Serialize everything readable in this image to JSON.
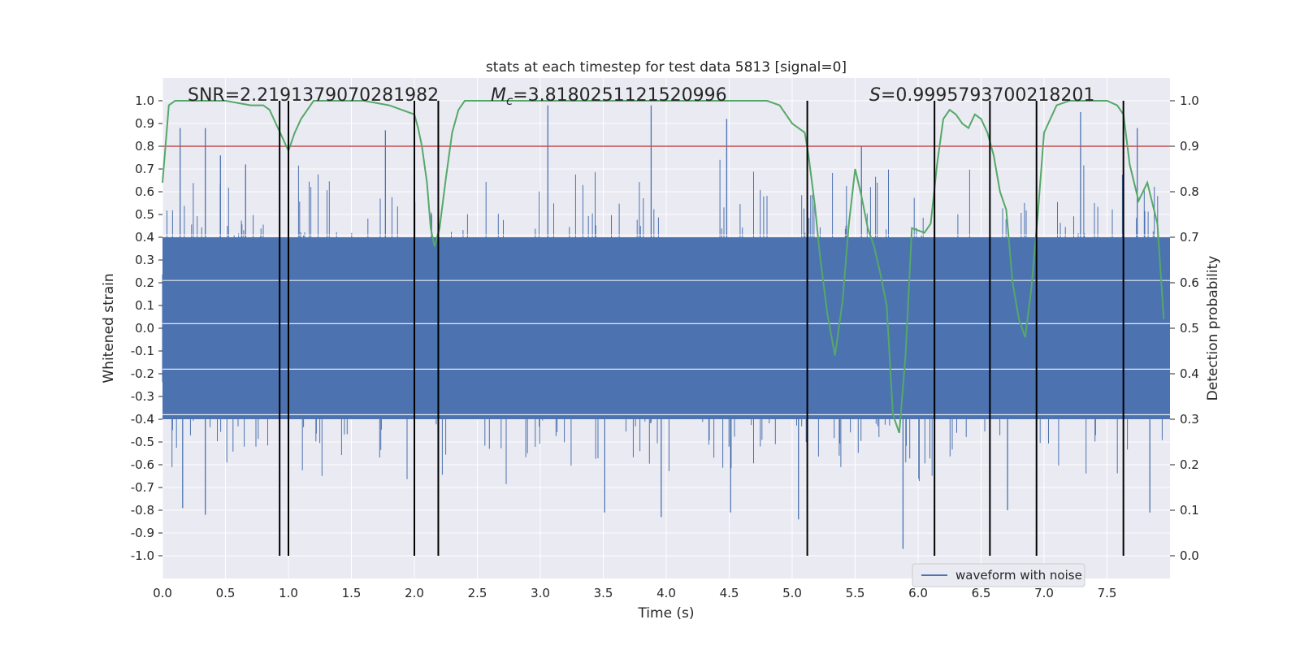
{
  "chart_data": {
    "type": "line",
    "title": "stats at each timestep for test data 5813 [signal=0]",
    "xlabel": "Time (s)",
    "ylabel": "Whitened strain",
    "y2label": "Detection probability",
    "xlim": [
      0,
      8
    ],
    "ylim": [
      -1.1,
      1.1
    ],
    "y2lim": [
      -0.05,
      1.05
    ],
    "x_ticks": [
      "0.0",
      "0.5",
      "1.0",
      "1.5",
      "2.0",
      "2.5",
      "3.0",
      "3.5",
      "4.0",
      "4.5",
      "5.0",
      "5.5",
      "6.0",
      "6.5",
      "7.0",
      "7.5"
    ],
    "y_ticks": [
      "1.0",
      "0.9",
      "0.8",
      "0.7",
      "0.6",
      "0.5",
      "0.4",
      "0.3",
      "0.2",
      "0.1",
      "0.0",
      "-0.1",
      "-0.2",
      "-0.3",
      "-0.4",
      "-0.5",
      "-0.6",
      "-0.7",
      "-0.8",
      "-0.9",
      "-1.0"
    ],
    "y2_ticks": [
      "1.0",
      "0.9",
      "0.8",
      "0.7",
      "0.6",
      "0.5",
      "0.4",
      "0.3",
      "0.2",
      "0.1",
      "0.0"
    ],
    "grid": true,
    "legend_placement": "lower-right",
    "annotations": {
      "snr": "SNR=2.2191379070281982",
      "mc_symbol": "M",
      "mc_subscript": "c",
      "mc_value": "=3.8180251121520996",
      "s_symbol": "S",
      "s_value": "=0.9995793700218201"
    },
    "threshold": {
      "value": 0.9,
      "axis": "right",
      "color": "#c44e52"
    },
    "segment_boundaries": [
      0.93,
      1.0,
      2.0,
      2.19,
      5.12,
      6.13,
      6.57,
      6.94,
      7.63
    ],
    "series": [
      {
        "name": "waveform with noise",
        "axis": "left",
        "color": "#4c72b0",
        "kind": "noise",
        "envelope": 0.4,
        "spikes": [
          {
            "t": 0.14,
            "v": 0.88
          },
          {
            "t": 0.34,
            "v": 0.88
          },
          {
            "t": 0.46,
            "v": 0.76
          },
          {
            "t": 0.66,
            "v": 0.72
          },
          {
            "t": 1.77,
            "v": 0.87
          },
          {
            "t": 3.06,
            "v": 0.98
          },
          {
            "t": 3.88,
            "v": 0.98
          },
          {
            "t": 4.48,
            "v": 0.92
          },
          {
            "t": 5.55,
            "v": 0.8
          },
          {
            "t": 7.29,
            "v": 0.95
          },
          {
            "t": 7.74,
            "v": 0.88
          },
          {
            "t": 0.16,
            "v": -0.79
          },
          {
            "t": 0.34,
            "v": -0.82
          },
          {
            "t": 1.0,
            "v": -0.83
          },
          {
            "t": 3.51,
            "v": -0.81
          },
          {
            "t": 3.96,
            "v": -0.83
          },
          {
            "t": 4.51,
            "v": -0.81
          },
          {
            "t": 5.05,
            "v": -0.84
          },
          {
            "t": 5.88,
            "v": -0.97
          },
          {
            "t": 6.13,
            "v": -0.93
          },
          {
            "t": 7.84,
            "v": -0.81
          },
          {
            "t": 6.71,
            "v": -0.8
          }
        ]
      },
      {
        "name": "",
        "axis": "right",
        "color": "#55a868",
        "x": [
          0.0,
          0.05,
          0.1,
          0.2,
          0.3,
          0.5,
          0.7,
          0.8,
          0.85,
          0.9,
          0.95,
          1.0,
          1.05,
          1.1,
          1.15,
          1.2,
          1.3,
          1.4,
          1.6,
          1.8,
          1.9,
          2.0,
          2.03,
          2.06,
          2.1,
          2.13,
          2.16,
          2.2,
          2.25,
          2.3,
          2.35,
          2.4,
          2.6,
          2.8,
          3.0,
          3.5,
          4.0,
          4.5,
          4.7,
          4.8,
          4.9,
          4.95,
          5.0,
          5.1,
          5.13,
          5.18,
          5.22,
          5.28,
          5.34,
          5.4,
          5.45,
          5.5,
          5.55,
          5.6,
          5.65,
          5.7,
          5.75,
          5.8,
          5.85,
          5.9,
          5.95,
          6.05,
          6.1,
          6.15,
          6.2,
          6.25,
          6.3,
          6.35,
          6.4,
          6.45,
          6.5,
          6.55,
          6.6,
          6.65,
          6.7,
          6.75,
          6.8,
          6.85,
          6.9,
          6.95,
          7.0,
          7.1,
          7.2,
          7.3,
          7.4,
          7.5,
          7.58,
          7.63,
          7.68,
          7.75,
          7.82,
          7.9,
          7.95
        ],
        "values": [
          0.82,
          0.99,
          1.0,
          1.0,
          1.0,
          1.0,
          0.99,
          0.99,
          0.98,
          0.95,
          0.92,
          0.89,
          0.93,
          0.96,
          0.98,
          1.0,
          1.0,
          1.0,
          1.0,
          0.99,
          0.98,
          0.97,
          0.94,
          0.9,
          0.82,
          0.72,
          0.68,
          0.72,
          0.83,
          0.93,
          0.98,
          1.0,
          1.0,
          1.0,
          1.0,
          1.0,
          1.0,
          1.0,
          1.0,
          1.0,
          0.99,
          0.97,
          0.95,
          0.93,
          0.88,
          0.77,
          0.66,
          0.53,
          0.44,
          0.56,
          0.73,
          0.85,
          0.79,
          0.72,
          0.68,
          0.62,
          0.55,
          0.31,
          0.27,
          0.44,
          0.72,
          0.71,
          0.73,
          0.86,
          0.96,
          0.98,
          0.97,
          0.95,
          0.94,
          0.97,
          0.96,
          0.93,
          0.88,
          0.8,
          0.76,
          0.6,
          0.52,
          0.48,
          0.59,
          0.75,
          0.93,
          0.99,
          1.0,
          1.0,
          1.0,
          1.0,
          0.99,
          0.97,
          0.86,
          0.78,
          0.82,
          0.73,
          0.52
        ]
      }
    ]
  }
}
